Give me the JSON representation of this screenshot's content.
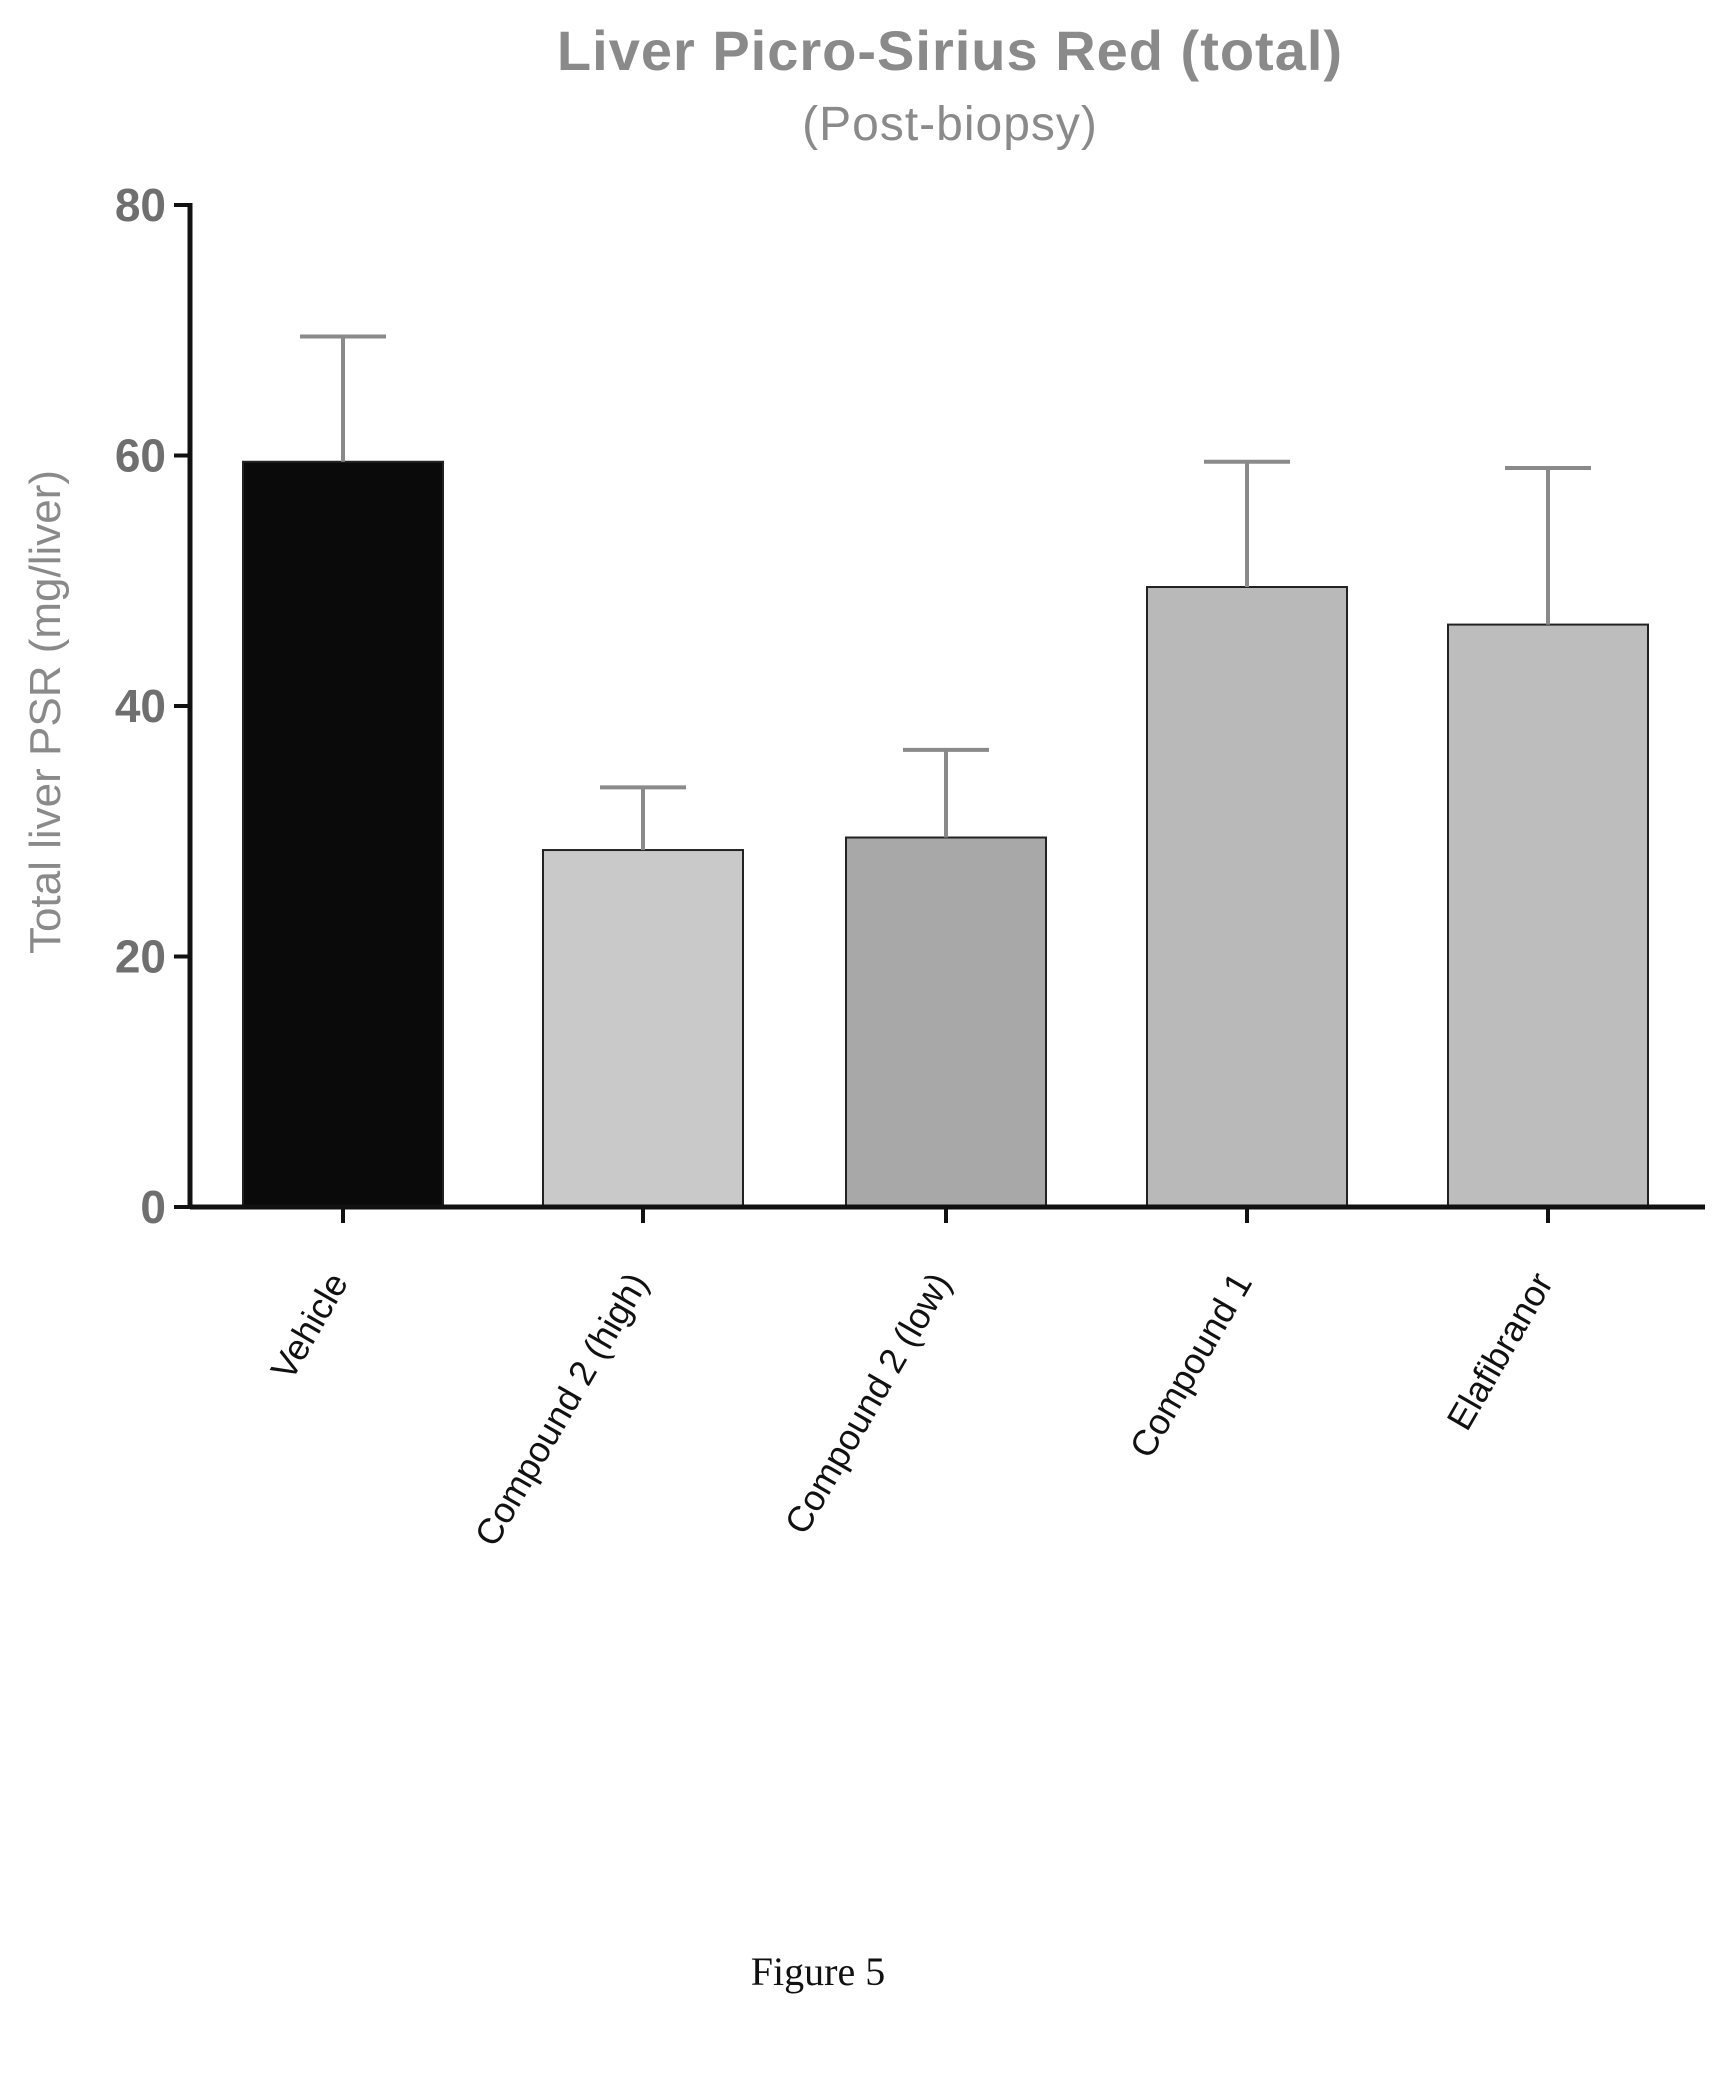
{
  "chart_data": {
    "type": "bar",
    "title": "Liver Picro-Sirius Red (total)",
    "subtitle": "(Post-biopsy)",
    "xlabel": "",
    "ylabel": "Total liver PSR (mg/liver)",
    "ylim": [
      0,
      80
    ],
    "yticks": [
      "0",
      "20",
      "40",
      "60",
      "80"
    ],
    "categories": [
      "Vehicle",
      "Compound 2 (high)",
      "Compound 2 (low)",
      "Compound 1",
      "Elafibranor"
    ],
    "values": [
      59.5,
      28.5,
      29.5,
      49.5,
      46.5
    ],
    "error_upper": [
      69.5,
      33.5,
      36.5,
      59.5,
      59.0
    ],
    "bar_colors": [
      "#0a0a0a",
      "#c9c9c9",
      "#a8a8a8",
      "#b9b9b9",
      "#bdbdbd"
    ],
    "grid": false,
    "legend": "none"
  },
  "caption": "Figure 5"
}
